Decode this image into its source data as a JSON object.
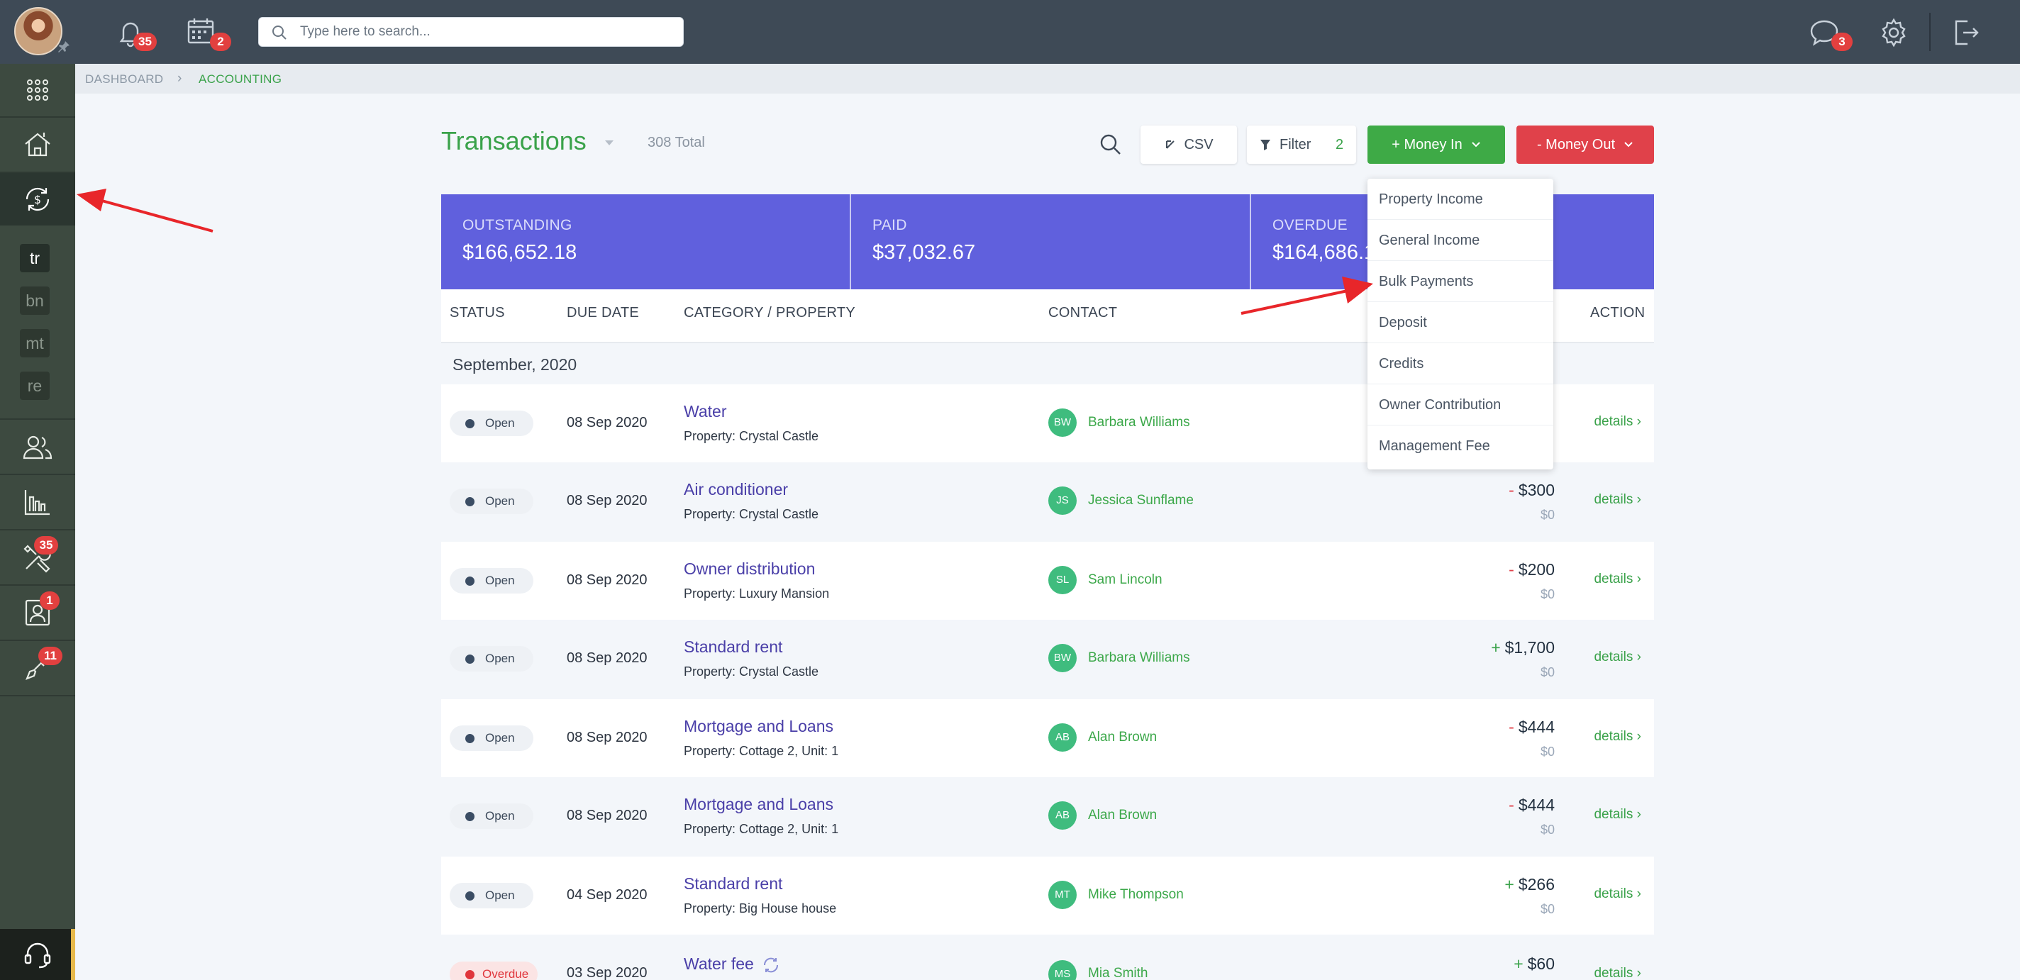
{
  "topbar": {
    "notifications_count": "35",
    "calendar_count": "2",
    "search_placeholder": "Type here to search...",
    "messages_count": "3"
  },
  "sidebar": {
    "subnav": [
      "tr",
      "bn",
      "mt",
      "re"
    ],
    "maintenance_badge": "35",
    "tenants_badge": "1",
    "tools_badge": "11"
  },
  "breadcrumb": {
    "dashboard": "DASHBOARD",
    "current": "ACCOUNTING"
  },
  "header": {
    "title": "Transactions",
    "total": "308 Total",
    "csv_label": "CSV",
    "filter_label": "Filter",
    "filter_count": "2",
    "money_in_label": "+ Money In",
    "money_out_label": "- Money Out"
  },
  "summary": {
    "outstanding_label": "OUTSTANDING",
    "outstanding_amount": "$166,652.18",
    "paid_label": "PAID",
    "paid_amount": "$37,032.67",
    "overdue_label": "OVERDUE",
    "overdue_amount": "$164,686.1"
  },
  "table": {
    "columns": {
      "status": "STATUS",
      "due_date": "DUE DATE",
      "category": "CATEGORY / PROPERTY",
      "contact": "CONTACT",
      "action": "ACTION"
    },
    "group_label": "September, 2020",
    "rows": [
      {
        "status": "Open",
        "date": "08 Sep 2020",
        "category": "Water",
        "property": "Property: Crystal Castle",
        "initials": "BW",
        "contact": "Barbara Williams",
        "sign": "",
        "amount": "",
        "paid": "",
        "action": "details"
      },
      {
        "status": "Open",
        "date": "08 Sep 2020",
        "category": "Air conditioner",
        "property": "Property: Crystal Castle",
        "initials": "JS",
        "contact": "Jessica Sunflame",
        "sign": "-",
        "amount": "$300",
        "paid": "$0",
        "action": "details"
      },
      {
        "status": "Open",
        "date": "08 Sep 2020",
        "category": "Owner distribution",
        "property": "Property: Luxury Mansion",
        "initials": "SL",
        "contact": "Sam Lincoln",
        "sign": "-",
        "amount": "$200",
        "paid": "$0",
        "action": "details"
      },
      {
        "status": "Open",
        "date": "08 Sep 2020",
        "category": "Standard rent",
        "property": "Property: Crystal Castle",
        "initials": "BW",
        "contact": "Barbara Williams",
        "sign": "+",
        "amount": "$1,700",
        "paid": "$0",
        "action": "details"
      },
      {
        "status": "Open",
        "date": "08 Sep 2020",
        "category": "Mortgage and Loans",
        "property": "Property: Cottage 2, Unit: 1",
        "initials": "AB",
        "contact": "Alan Brown",
        "sign": "-",
        "amount": "$444",
        "paid": "$0",
        "action": "details"
      },
      {
        "status": "Open",
        "date": "08 Sep 2020",
        "category": "Mortgage and Loans",
        "property": "Property: Cottage 2, Unit: 1",
        "initials": "AB",
        "contact": "Alan Brown",
        "sign": "-",
        "amount": "$444",
        "paid": "$0",
        "action": "details"
      },
      {
        "status": "Open",
        "date": "04 Sep 2020",
        "category": "Standard rent",
        "property": "Property: Big House house",
        "initials": "MT",
        "contact": "Mike Thompson",
        "sign": "+",
        "amount": "$266",
        "paid": "$0",
        "action": "details"
      },
      {
        "status": "Overdue",
        "date": "03 Sep 2020",
        "category": "Water fee",
        "property": "",
        "initials": "MS",
        "contact": "Mia Smith",
        "sign": "+",
        "amount": "$60",
        "paid": "",
        "action": "details"
      }
    ]
  },
  "money_in_menu": {
    "items": [
      "Property Income",
      "General Income",
      "Bulk Payments",
      "Deposit",
      "Credits",
      "Owner Contribution",
      "Management Fee"
    ]
  },
  "colors": {
    "topbar": "#3e4a56",
    "sidebar": "#3d4a40",
    "accent_green": "#3aa24a",
    "summary_banner": "#6060dd",
    "money_out": "#e0414a",
    "annotation_arrow": "#e8262a"
  }
}
